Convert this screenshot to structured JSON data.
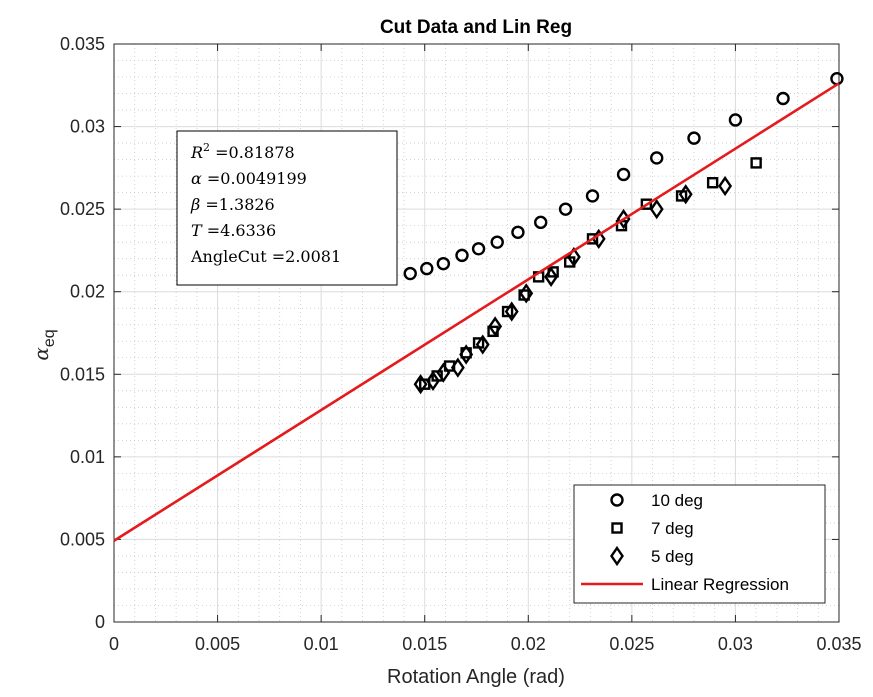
{
  "chart_data": {
    "type": "scatter",
    "title": "Cut Data and Lin Reg",
    "xlabel": "Rotation Angle (rad)",
    "ylabel_base": "α",
    "ylabel_sub": "eq",
    "xlim": [
      0,
      0.035
    ],
    "ylim": [
      0,
      0.035
    ],
    "xticks": [
      "0",
      "0.005",
      "0.01",
      "0.015",
      "0.02",
      "0.025",
      "0.03",
      "0.035"
    ],
    "yticks": [
      "0",
      "0.005",
      "0.01",
      "0.015",
      "0.02",
      "0.025",
      "0.03",
      "0.035"
    ],
    "grid": true,
    "minor_grid": true,
    "legend_position": "bottom-right",
    "series": [
      {
        "name": "10 deg",
        "marker": "circle",
        "color": "#000000",
        "x": [
          0.0143,
          0.0151,
          0.0159,
          0.0168,
          0.0176,
          0.0185,
          0.0195,
          0.0206,
          0.0218,
          0.0231,
          0.0246,
          0.0262,
          0.028,
          0.03,
          0.0323,
          0.0349
        ],
        "y": [
          0.0211,
          0.0214,
          0.0217,
          0.0222,
          0.0226,
          0.023,
          0.0236,
          0.0242,
          0.025,
          0.0258,
          0.0271,
          0.0281,
          0.0293,
          0.0304,
          0.0317,
          0.0329
        ]
      },
      {
        "name": "7 deg",
        "marker": "square",
        "color": "#000000",
        "x": [
          0.015,
          0.0156,
          0.0162,
          0.017,
          0.0176,
          0.0183,
          0.019,
          0.0198,
          0.0205,
          0.0212,
          0.022,
          0.0231,
          0.0245,
          0.0257,
          0.0274,
          0.0289,
          0.031
        ],
        "y": [
          0.0144,
          0.0149,
          0.0155,
          0.0163,
          0.0169,
          0.0176,
          0.0188,
          0.0198,
          0.0209,
          0.0212,
          0.0218,
          0.0232,
          0.024,
          0.0253,
          0.0258,
          0.0266,
          0.0278
        ]
      },
      {
        "name": "5 deg",
        "marker": "diamond",
        "color": "#000000",
        "x": [
          0.0148,
          0.0154,
          0.0159,
          0.0166,
          0.017,
          0.0178,
          0.0184,
          0.0192,
          0.0199,
          0.0211,
          0.0222,
          0.0234,
          0.0246,
          0.0262,
          0.0276,
          0.0295
        ],
        "y": [
          0.0144,
          0.0146,
          0.0151,
          0.0154,
          0.0162,
          0.0168,
          0.0179,
          0.0188,
          0.0199,
          0.0209,
          0.0221,
          0.0232,
          0.0244,
          0.025,
          0.0259,
          0.0264
        ]
      },
      {
        "name": "Linear Regression",
        "type": "line",
        "color": "#e41a1c",
        "x": [
          0,
          0.035
        ],
        "y": [
          0.00492,
          0.03262
        ]
      }
    ],
    "annotation_lines": [
      {
        "label": "R",
        "sup": "2",
        "value": " =0.81878"
      },
      {
        "label": "α",
        "value": " =0.0049199"
      },
      {
        "label": "β",
        "value": " =1.3826"
      },
      {
        "label": "T",
        "value": " =4.6336"
      },
      {
        "label": "AngleCut",
        "value": " =2.0081"
      }
    ]
  }
}
